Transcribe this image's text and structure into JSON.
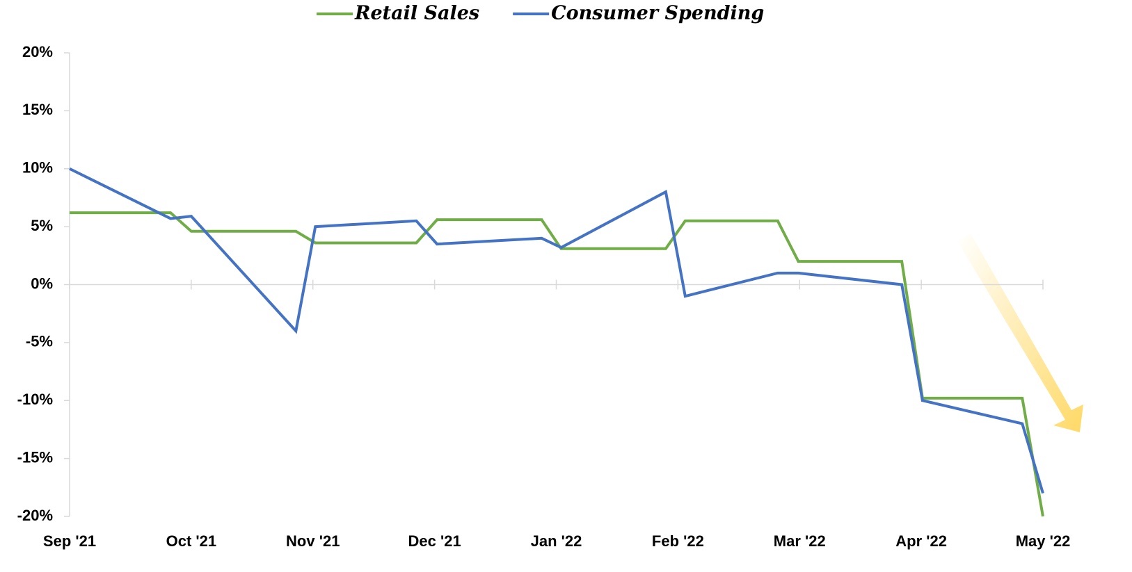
{
  "chart_data": {
    "type": "line",
    "x": [
      0,
      0.83,
      1.0,
      1.86,
      2.02,
      2.85,
      3.02,
      3.88,
      4.04,
      4.9,
      5.06,
      5.82,
      5.99,
      6.84,
      7.01,
      7.83,
      8.0
    ],
    "series": [
      {
        "name": "Retail Sales",
        "color": "#70ad47",
        "values": [
          6.2,
          6.2,
          4.6,
          4.6,
          3.6,
          3.6,
          5.6,
          5.6,
          3.1,
          3.1,
          5.5,
          5.5,
          2.0,
          2.0,
          -9.8,
          -9.8,
          -20
        ]
      },
      {
        "name": "Consumer Spending",
        "color": "#4472c4",
        "values": [
          10,
          5.7,
          5.9,
          -4,
          5,
          5.5,
          3.5,
          4,
          3.2,
          8,
          -1,
          1,
          1,
          0,
          -10,
          -12,
          -18
        ]
      }
    ],
    "xlim": [
      0,
      8
    ],
    "xticks": [
      {
        "value": 0,
        "label": "Sep '21"
      },
      {
        "value": 1,
        "label": "Oct '21"
      },
      {
        "value": 2,
        "label": "Nov '21"
      },
      {
        "value": 3,
        "label": "Dec '21"
      },
      {
        "value": 4,
        "label": "Jan '22"
      },
      {
        "value": 5,
        "label": "Feb '22"
      },
      {
        "value": 6,
        "label": "Mar '22"
      },
      {
        "value": 7,
        "label": "Apr '22"
      },
      {
        "value": 8,
        "label": "May '22"
      }
    ],
    "ylim": [
      -20,
      20
    ],
    "yticks": [
      {
        "value": -20,
        "label": "-20%"
      },
      {
        "value": -15,
        "label": "-15%"
      },
      {
        "value": -10,
        "label": "-10%"
      },
      {
        "value": -5,
        "label": "-5%"
      },
      {
        "value": 0,
        "label": "0%"
      },
      {
        "value": 5,
        "label": "5%"
      },
      {
        "value": 10,
        "label": "10%"
      },
      {
        "value": 15,
        "label": "15%"
      },
      {
        "value": 20,
        "label": "20%"
      }
    ],
    "legend": "top"
  }
}
